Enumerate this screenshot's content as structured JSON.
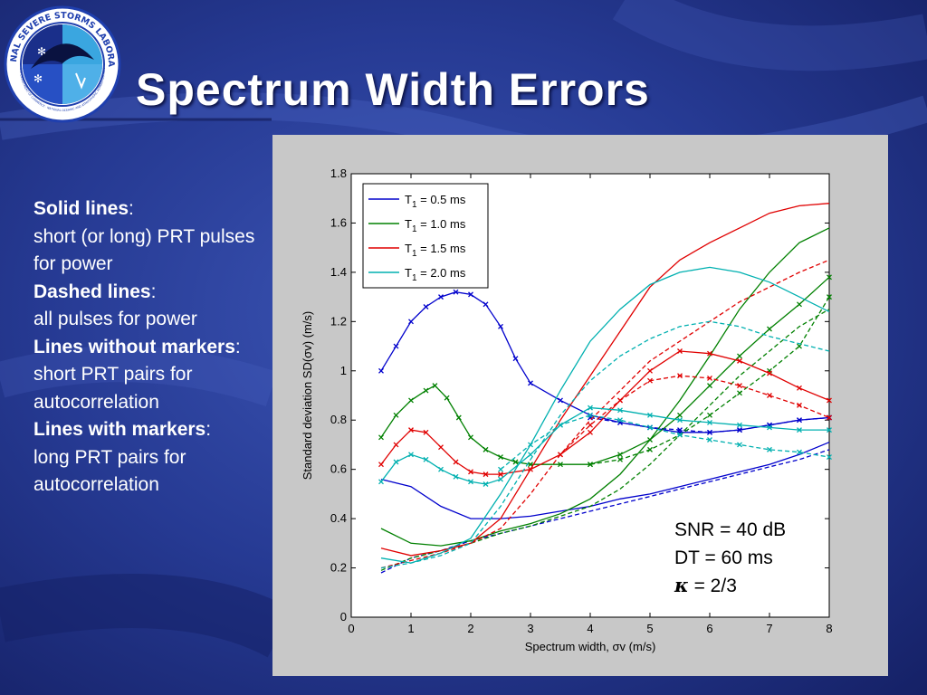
{
  "slide": {
    "title": "Spectrum Width Errors",
    "logo": {
      "ring_text_top": "NATIONAL SEVERE STORMS LABORATORY",
      "ring_text_bottom": "U.S. DEPARTMENT OF COMMERCE · NATIONAL OCEANIC AND ATMOSPHERIC ADMINISTRATION",
      "icon": "nssl-logo"
    },
    "notes": [
      {
        "head": "Solid lines",
        "body": "short (or long) PRT pulses for power"
      },
      {
        "head": "Dashed lines",
        "body": "all pulses for power"
      },
      {
        "head": "Lines without markers",
        "body": "short PRT pairs for autocorrelation"
      },
      {
        "head": "Lines with markers",
        "body": "long PRT pairs for autocorrelation"
      }
    ],
    "params": {
      "snr": "SNR = 40 dB",
      "dt": "DT = 60 ms",
      "kappa_symbol": "κ",
      "kappa_value": " = 2/3"
    },
    "colors": {
      "background": "#1b2a7a",
      "title": "#ffffff",
      "panel": "#c8c8c8"
    }
  },
  "chart_data": {
    "type": "line",
    "xlabel": "Spectrum width, σv (m/s)",
    "ylabel": "Standard deviation SD(σv) (m/s)",
    "xlim": [
      0,
      8
    ],
    "ylim": [
      0,
      1.8
    ],
    "xticks": [
      "0",
      "1",
      "2",
      "3",
      "4",
      "5",
      "6",
      "7",
      "8"
    ],
    "yticks": [
      "0",
      "0.2",
      "0.4",
      "0.6",
      "0.8",
      "1",
      "1.2",
      "1.4",
      "1.6",
      "1.8"
    ],
    "grid": false,
    "legend_position": "top-left",
    "legend": [
      {
        "label": "T1 = 0.5 ms",
        "color": "#0000cc"
      },
      {
        "label": "T1 = 1.0 ms",
        "color": "#008000"
      },
      {
        "label": "T1 = 1.5 ms",
        "color": "#e00000"
      },
      {
        "label": "T1 = 2.0 ms",
        "color": "#00b0b0"
      }
    ],
    "series": [
      {
        "t1": "0.5",
        "color": "#0000cc",
        "dashed": false,
        "markers": false,
        "x": [
          0.5,
          1,
          1.5,
          2,
          2.5,
          3,
          3.5,
          4,
          4.5,
          5,
          5.5,
          6,
          6.5,
          7,
          7.5,
          8
        ],
        "y": [
          0.56,
          0.53,
          0.45,
          0.4,
          0.4,
          0.41,
          0.43,
          0.45,
          0.48,
          0.5,
          0.53,
          0.56,
          0.59,
          0.62,
          0.66,
          0.71
        ]
      },
      {
        "t1": "0.5",
        "color": "#0000cc",
        "dashed": true,
        "markers": false,
        "x": [
          0.5,
          1,
          1.5,
          2,
          2.5,
          3,
          3.5,
          4,
          4.5,
          5,
          5.5,
          6,
          6.5,
          7,
          7.5,
          8
        ],
        "y": [
          0.18,
          0.24,
          0.27,
          0.31,
          0.34,
          0.37,
          0.4,
          0.43,
          0.46,
          0.49,
          0.52,
          0.55,
          0.58,
          0.61,
          0.64,
          0.68
        ]
      },
      {
        "t1": "0.5",
        "color": "#0000cc",
        "dashed": false,
        "markers": true,
        "x": [
          0.5,
          0.75,
          1,
          1.25,
          1.5,
          1.75,
          2,
          2.25,
          2.5,
          2.75,
          3,
          3.5,
          4,
          4.5,
          5,
          5.5,
          6,
          6.5,
          7,
          7.5,
          8
        ],
        "y": [
          1.0,
          1.1,
          1.2,
          1.26,
          1.3,
          1.32,
          1.31,
          1.27,
          1.18,
          1.05,
          0.95,
          0.88,
          0.82,
          0.79,
          0.77,
          0.75,
          0.75,
          0.76,
          0.78,
          0.8,
          0.81
        ]
      },
      {
        "t1": "0.5",
        "color": "#0000cc",
        "dashed": true,
        "markers": true,
        "x": [
          4,
          4.5,
          5,
          5.5,
          6,
          6.5,
          7,
          7.5,
          8
        ],
        "y": [
          0.81,
          0.79,
          0.77,
          0.76,
          0.75,
          0.76,
          0.78,
          0.8,
          0.81
        ]
      },
      {
        "t1": "1.0",
        "color": "#008000",
        "dashed": false,
        "markers": false,
        "x": [
          0.5,
          1,
          1.5,
          2,
          2.5,
          3,
          3.5,
          4,
          4.5,
          5,
          5.5,
          6,
          6.5,
          7,
          7.5,
          8
        ],
        "y": [
          0.36,
          0.3,
          0.29,
          0.31,
          0.35,
          0.38,
          0.42,
          0.48,
          0.58,
          0.72,
          0.88,
          1.06,
          1.25,
          1.4,
          1.52,
          1.58
        ]
      },
      {
        "t1": "1.0",
        "color": "#008000",
        "dashed": true,
        "markers": false,
        "x": [
          0.5,
          1,
          1.5,
          2,
          2.5,
          3,
          3.5,
          4,
          4.5,
          5,
          5.5,
          6,
          6.5,
          7,
          7.5,
          8
        ],
        "y": [
          0.19,
          0.24,
          0.27,
          0.3,
          0.34,
          0.37,
          0.41,
          0.45,
          0.52,
          0.62,
          0.74,
          0.86,
          0.98,
          1.08,
          1.18,
          1.25
        ]
      },
      {
        "t1": "1.0",
        "color": "#008000",
        "dashed": false,
        "markers": true,
        "x": [
          0.5,
          0.75,
          1,
          1.25,
          1.4,
          1.6,
          1.8,
          2,
          2.25,
          2.5,
          2.75,
          3,
          3.5,
          4,
          4.5,
          5,
          5.5,
          6,
          6.5,
          7,
          7.5,
          8
        ],
        "y": [
          0.73,
          0.82,
          0.88,
          0.92,
          0.94,
          0.89,
          0.81,
          0.73,
          0.68,
          0.65,
          0.63,
          0.62,
          0.62,
          0.62,
          0.66,
          0.72,
          0.82,
          0.94,
          1.06,
          1.17,
          1.27,
          1.38
        ]
      },
      {
        "t1": "1.0",
        "color": "#008000",
        "dashed": true,
        "markers": true,
        "x": [
          4,
          4.5,
          5,
          5.5,
          6,
          6.5,
          7,
          7.5,
          8
        ],
        "y": [
          0.62,
          0.64,
          0.68,
          0.74,
          0.82,
          0.91,
          1.0,
          1.1,
          1.3
        ]
      },
      {
        "t1": "1.5",
        "color": "#e00000",
        "dashed": false,
        "markers": false,
        "x": [
          0.5,
          1,
          1.5,
          2,
          2.5,
          3,
          3.5,
          4,
          4.5,
          5,
          5.5,
          6,
          6.5,
          7,
          7.5,
          8
        ],
        "y": [
          0.28,
          0.25,
          0.27,
          0.3,
          0.4,
          0.6,
          0.8,
          0.98,
          1.16,
          1.34,
          1.45,
          1.52,
          1.58,
          1.64,
          1.67,
          1.68
        ]
      },
      {
        "t1": "1.5",
        "color": "#e00000",
        "dashed": true,
        "markers": false,
        "x": [
          0.5,
          1,
          1.5,
          2,
          2.5,
          3,
          3.5,
          4,
          4.5,
          5,
          5.5,
          6,
          6.5,
          7,
          7.5,
          8
        ],
        "y": [
          0.2,
          0.23,
          0.26,
          0.3,
          0.36,
          0.5,
          0.66,
          0.8,
          0.92,
          1.04,
          1.12,
          1.2,
          1.28,
          1.34,
          1.4,
          1.45
        ]
      },
      {
        "t1": "1.5",
        "color": "#e00000",
        "dashed": false,
        "markers": true,
        "x": [
          0.5,
          0.75,
          1,
          1.25,
          1.5,
          1.75,
          2,
          2.25,
          2.5,
          3,
          3.5,
          4,
          4.5,
          5,
          5.5,
          6,
          6.5,
          7,
          7.5,
          8
        ],
        "y": [
          0.62,
          0.7,
          0.76,
          0.75,
          0.69,
          0.63,
          0.59,
          0.58,
          0.58,
          0.6,
          0.66,
          0.75,
          0.88,
          1.0,
          1.08,
          1.07,
          1.04,
          0.99,
          0.93,
          0.88
        ]
      },
      {
        "t1": "1.5",
        "color": "#e00000",
        "dashed": true,
        "markers": true,
        "x": [
          3.5,
          4,
          4.5,
          5,
          5.5,
          6,
          6.5,
          7,
          7.5,
          8
        ],
        "y": [
          0.66,
          0.78,
          0.88,
          0.96,
          0.98,
          0.97,
          0.94,
          0.9,
          0.86,
          0.81
        ]
      },
      {
        "t1": "2.0",
        "color": "#00b0b0",
        "dashed": false,
        "markers": false,
        "x": [
          0.5,
          1,
          1.5,
          2,
          2.5,
          3,
          3.5,
          4,
          4.5,
          5,
          5.5,
          6,
          6.5,
          7,
          7.5,
          8
        ],
        "y": [
          0.24,
          0.22,
          0.26,
          0.32,
          0.5,
          0.7,
          0.92,
          1.12,
          1.25,
          1.35,
          1.4,
          1.42,
          1.4,
          1.36,
          1.3,
          1.24
        ]
      },
      {
        "t1": "2.0",
        "color": "#00b0b0",
        "dashed": true,
        "markers": false,
        "x": [
          0.5,
          1,
          1.5,
          2,
          2.5,
          3,
          3.5,
          4,
          4.5,
          5,
          5.5,
          6,
          6.5,
          7,
          7.5,
          8
        ],
        "y": [
          0.2,
          0.22,
          0.25,
          0.3,
          0.45,
          0.64,
          0.82,
          0.96,
          1.06,
          1.13,
          1.18,
          1.2,
          1.18,
          1.14,
          1.11,
          1.08
        ]
      },
      {
        "t1": "2.0",
        "color": "#00b0b0",
        "dashed": false,
        "markers": true,
        "x": [
          0.5,
          0.75,
          1,
          1.25,
          1.5,
          1.75,
          2,
          2.25,
          2.5,
          3,
          3.5,
          4,
          4.5,
          5,
          5.5,
          6,
          6.5,
          7,
          7.5,
          8
        ],
        "y": [
          0.55,
          0.63,
          0.66,
          0.64,
          0.6,
          0.57,
          0.55,
          0.54,
          0.56,
          0.66,
          0.78,
          0.85,
          0.84,
          0.82,
          0.8,
          0.79,
          0.78,
          0.77,
          0.76,
          0.76
        ]
      },
      {
        "t1": "2.0",
        "color": "#00b0b0",
        "dashed": true,
        "markers": true,
        "x": [
          2.5,
          3,
          3.5,
          4,
          4.5,
          5,
          5.5,
          6,
          6.5,
          7,
          7.5,
          8
        ],
        "y": [
          0.6,
          0.7,
          0.78,
          0.82,
          0.8,
          0.77,
          0.74,
          0.72,
          0.7,
          0.68,
          0.67,
          0.65
        ]
      }
    ]
  }
}
